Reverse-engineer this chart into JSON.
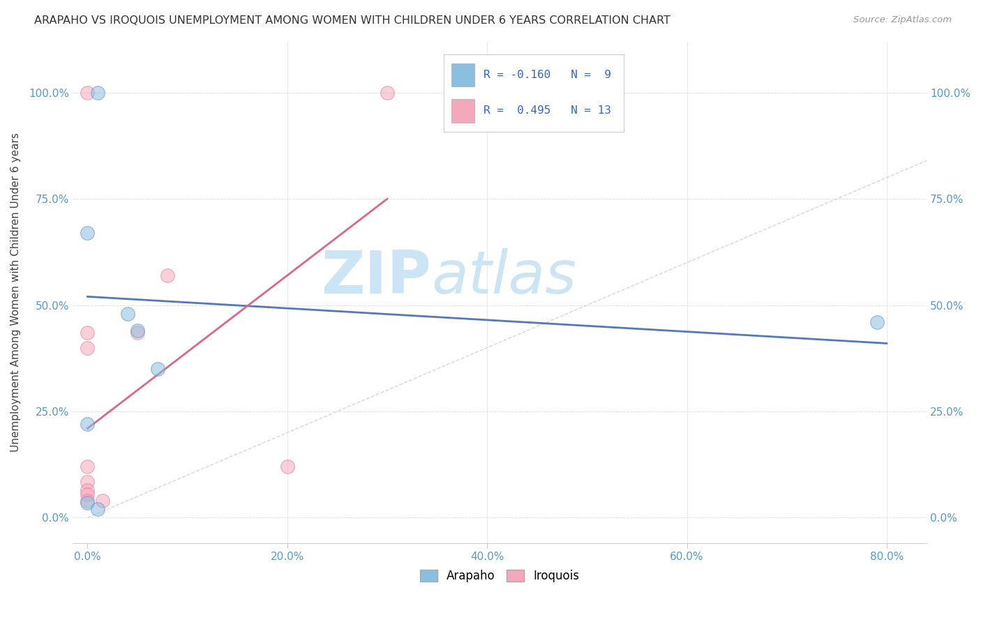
{
  "title": "ARAPAHO VS IROQUOIS UNEMPLOYMENT AMONG WOMEN WITH CHILDREN UNDER 6 YEARS CORRELATION CHART",
  "source": "Source: ZipAtlas.com",
  "ylabel": "Unemployment Among Women with Children Under 6 years",
  "x_tick_vals": [
    0.0,
    0.2,
    0.4,
    0.6,
    0.8
  ],
  "x_tick_labels": [
    "0.0%",
    "20.0%",
    "40.0%",
    "60.0%",
    "80.0%"
  ],
  "y_tick_vals": [
    0.0,
    0.25,
    0.5,
    0.75,
    1.0
  ],
  "y_tick_labels": [
    "0.0%",
    "25.0%",
    "50.0%",
    "75.0%",
    "100.0%"
  ],
  "xlim": [
    -0.015,
    0.84
  ],
  "ylim": [
    -0.06,
    1.12
  ],
  "arapaho_points": [
    [
      0.01,
      1.0
    ],
    [
      0.0,
      0.67
    ],
    [
      0.04,
      0.48
    ],
    [
      0.05,
      0.44
    ],
    [
      0.07,
      0.35
    ],
    [
      0.0,
      0.22
    ],
    [
      0.0,
      0.035
    ],
    [
      0.01,
      0.02
    ],
    [
      0.79,
      0.46
    ]
  ],
  "iroquois_points": [
    [
      0.0,
      1.0
    ],
    [
      0.3,
      1.0
    ],
    [
      0.0,
      0.435
    ],
    [
      0.08,
      0.57
    ],
    [
      0.05,
      0.435
    ],
    [
      0.0,
      0.4
    ],
    [
      0.0,
      0.12
    ],
    [
      0.0,
      0.085
    ],
    [
      0.0,
      0.065
    ],
    [
      0.0,
      0.055
    ],
    [
      0.0,
      0.04
    ],
    [
      0.015,
      0.04
    ],
    [
      0.2,
      0.12
    ]
  ],
  "arapaho_color": "#8bbfdf",
  "arapaho_edge_color": "#6699cc",
  "iroquois_color": "#f5a8bc",
  "iroquois_edge_color": "#dd8899",
  "arapaho_line_color": "#5577bb",
  "iroquois_line_color": "#dd6688",
  "diagonal_line_color": "#cccccc",
  "background_color": "#ffffff",
  "grid_color": "#e0e0e0",
  "watermark_zip": "ZIP",
  "watermark_atlas": "atlas",
  "watermark_color": "#cce5f5",
  "tick_color": "#5599cc",
  "legend_R_N_color": "#3366cc"
}
